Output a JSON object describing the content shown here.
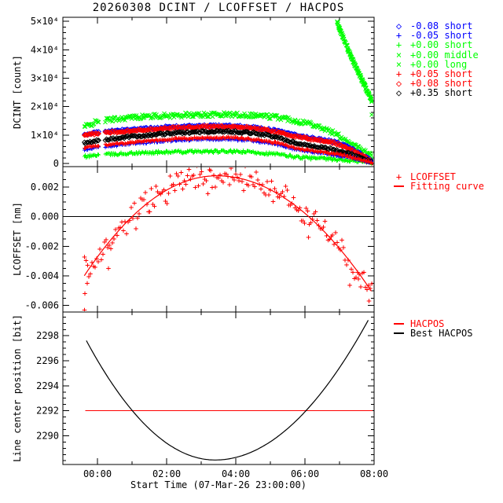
{
  "figure": {
    "background": "#ffffff",
    "frame_color": "#000000"
  },
  "chart_data": {
    "type": "scatter",
    "title": "20260308 DCINT / LCOFFSET / HACPOS",
    "x": {
      "label": "Start Time (07-Mar-26 23:00:00)",
      "range_hours": [
        -1,
        8
      ],
      "major_tick_hours": [
        0,
        2,
        4,
        6,
        8
      ],
      "major_tick_labels": [
        "00:00",
        "02:00",
        "04:00",
        "06:00",
        "08:00"
      ],
      "minor_tick_step_hours": 1,
      "data_gap_hours": [
        0.06,
        0.22
      ]
    },
    "panels": [
      {
        "name": "DCINT",
        "ylabel": "DCINT [count]",
        "ylim": [
          -1100,
          51400
        ],
        "ytick_vals": [
          0,
          10000,
          20000,
          30000,
          40000,
          50000
        ],
        "ytick_labels": [
          "0",
          "1×10⁴",
          "2×10⁴",
          "3×10⁴",
          "4×10⁴",
          "5×10⁴"
        ],
        "minor_step": 2000,
        "legend": [
          {
            "glyph": "◇",
            "color": "#0000ff",
            "label": "-0.08 short"
          },
          {
            "glyph": "+",
            "color": "#0000ff",
            "label": "-0.05 short"
          },
          {
            "glyph": "+",
            "color": "#00ff00",
            "label": "+0.00 short"
          },
          {
            "glyph": "×",
            "color": "#00ff00",
            "label": "+0.00 middle"
          },
          {
            "glyph": "×",
            "color": "#00ff00",
            "label": "+0.00 long"
          },
          {
            "glyph": "+",
            "color": "#ff0000",
            "label": "+0.05 short"
          },
          {
            "glyph": "◇",
            "color": "#ff0000",
            "label": "+0.08 short"
          },
          {
            "glyph": "◇",
            "color": "#000000",
            "label": "+0.35 short"
          }
        ],
        "series": [
          {
            "name": "+0.00 middle",
            "marker": "x",
            "color": "#00ff00",
            "n": 300,
            "jitter": 800,
            "points": [
              [
                -0.38,
                12800
              ],
              [
                0,
                14800
              ],
              [
                0.5,
                15600
              ],
              [
                1,
                16200
              ],
              [
                1.5,
                16600
              ],
              [
                2,
                16800
              ],
              [
                2.5,
                17000
              ],
              [
                3,
                17100
              ],
              [
                3.5,
                17200
              ],
              [
                4,
                17200
              ],
              [
                4.5,
                17000
              ],
              [
                5,
                16500
              ],
              [
                5.4,
                16000
              ],
              [
                5.8,
                14800
              ],
              [
                6.2,
                14000
              ],
              [
                6.6,
                12000
              ],
              [
                6.9,
                10300
              ],
              [
                7.2,
                8200
              ],
              [
                7.5,
                5800
              ],
              [
                7.7,
                4200
              ],
              [
                7.95,
                2500
              ]
            ]
          },
          {
            "name": "+0.00 short",
            "marker": "plus",
            "color": "#00ff00",
            "n": 300,
            "jitter": 500,
            "points": [
              [
                -0.38,
                2400
              ],
              [
                0,
                3000
              ],
              [
                1,
                3600
              ],
              [
                2,
                4000
              ],
              [
                3,
                4200
              ],
              [
                3.8,
                4200
              ],
              [
                4.5,
                4000
              ],
              [
                5.2,
                3200
              ],
              [
                5.8,
                2200
              ],
              [
                6.3,
                1800
              ],
              [
                6.8,
                1500
              ],
              [
                7.2,
                1100
              ],
              [
                7.6,
                700
              ],
              [
                7.95,
                200
              ]
            ]
          },
          {
            "name": "-0.08 short",
            "marker": "diamond",
            "color": "#0000ff",
            "n": 260,
            "jitter": 350,
            "points": [
              [
                -0.38,
                10200
              ],
              [
                0,
                11000
              ],
              [
                1,
                12000
              ],
              [
                2,
                12800
              ],
              [
                3,
                13200
              ],
              [
                3.8,
                13300
              ],
              [
                4.5,
                12800
              ],
              [
                5.2,
                11500
              ],
              [
                5.8,
                9700
              ],
              [
                6.3,
                8800
              ],
              [
                6.8,
                7800
              ],
              [
                7.2,
                6000
              ],
              [
                7.6,
                3500
              ],
              [
                7.95,
                800
              ]
            ]
          },
          {
            "name": "+0.08 short",
            "marker": "diamond",
            "color": "#ff0000",
            "n": 260,
            "jitter": 350,
            "points": [
              [
                -0.38,
                9700
              ],
              [
                0,
                10600
              ],
              [
                1,
                11600
              ],
              [
                2,
                12400
              ],
              [
                3,
                12900
              ],
              [
                3.8,
                13000
              ],
              [
                4.5,
                12500
              ],
              [
                5.2,
                11100
              ],
              [
                5.8,
                9300
              ],
              [
                6.3,
                8400
              ],
              [
                6.8,
                7400
              ],
              [
                7.2,
                5600
              ],
              [
                7.6,
                3200
              ],
              [
                7.95,
                600
              ]
            ]
          },
          {
            "name": "+0.35 short",
            "marker": "diamond",
            "color": "#000000",
            "n": 260,
            "jitter": 350,
            "points": [
              [
                -0.38,
                7200
              ],
              [
                0,
                8000
              ],
              [
                1,
                9500
              ],
              [
                2,
                10500
              ],
              [
                3,
                11200
              ],
              [
                3.8,
                11300
              ],
              [
                4.5,
                10800
              ],
              [
                5.2,
                9200
              ],
              [
                5.8,
                7000
              ],
              [
                6.3,
                6000
              ],
              [
                6.8,
                5000
              ],
              [
                7.2,
                3800
              ],
              [
                7.6,
                2000
              ],
              [
                7.95,
                400
              ]
            ]
          },
          {
            "name": "-0.05 short",
            "marker": "plus",
            "color": "#0000ff",
            "n": 260,
            "jitter": 350,
            "points": [
              [
                -0.38,
                5000
              ],
              [
                0,
                5700
              ],
              [
                1,
                7000
              ],
              [
                2,
                8000
              ],
              [
                3,
                8500
              ],
              [
                3.8,
                8600
              ],
              [
                4.5,
                8100
              ],
              [
                5.2,
                6700
              ],
              [
                5.8,
                4800
              ],
              [
                6.3,
                4000
              ],
              [
                6.8,
                3200
              ],
              [
                7.2,
                2400
              ],
              [
                7.6,
                1200
              ],
              [
                7.95,
                250
              ]
            ]
          },
          {
            "name": "+0.05 short",
            "marker": "plus",
            "color": "#ff0000",
            "n": 260,
            "jitter": 350,
            "points": [
              [
                -0.38,
                5500
              ],
              [
                0,
                6200
              ],
              [
                1,
                7500
              ],
              [
                2,
                8500
              ],
              [
                3,
                9000
              ],
              [
                3.8,
                9100
              ],
              [
                4.5,
                8600
              ],
              [
                5.2,
                7200
              ],
              [
                5.8,
                5200
              ],
              [
                6.3,
                4400
              ],
              [
                6.8,
                3600
              ],
              [
                7.2,
                2700
              ],
              [
                7.6,
                1400
              ],
              [
                7.95,
                300
              ]
            ]
          },
          {
            "name": "+0.00 long",
            "marker": "x",
            "color": "#00ff00",
            "n": 130,
            "jitter": 600,
            "no_gap": true,
            "points": [
              [
                6.93,
                49400
              ],
              [
                7.2,
                41500
              ],
              [
                7.45,
                34500
              ],
              [
                7.7,
                28000
              ],
              [
                7.95,
                21500
              ]
            ],
            "extra": [
              [
                7.93,
                17100
              ]
            ]
          }
        ]
      },
      {
        "name": "LCOFFSET",
        "ylabel": "LCOFFSET [nm]",
        "ylim": [
          -0.00644,
          0.00338
        ],
        "ytick_vals": [
          -0.006,
          -0.004,
          -0.002,
          0.0,
          0.002
        ],
        "ytick_labels": [
          "-0.006",
          "-0.004",
          "-0.002",
          "0.000",
          "0.002"
        ],
        "minor_step": 0.0005,
        "legend": [
          {
            "glyph": "+",
            "color": "#ff0000",
            "label": "LCOFFSET"
          },
          {
            "glyph": "line",
            "color": "#ff0000",
            "label": "Fitting curve"
          }
        ],
        "zero_line": 0.0,
        "fit_curve": {
          "color": "#ff0000",
          "peak_h": 3.45,
          "peak_v": 0.00276,
          "a_left": -0.00046,
          "a_right": -0.00039,
          "h_range": [
            -0.38,
            7.93
          ]
        },
        "scatter": {
          "marker": "plus",
          "color": "#ff0000",
          "n": 185,
          "noise": 0.0005,
          "outliers": [
            [
              -0.36,
              -0.0052
            ],
            [
              -0.37,
              -0.0063
            ],
            [
              -0.3,
              -0.0045
            ],
            [
              0.32,
              -0.0035
            ],
            [
              6.1,
              -0.0014
            ],
            [
              7.55,
              -0.0042
            ],
            [
              7.85,
              -0.0057
            ]
          ]
        }
      },
      {
        "name": "HACPOS",
        "ylabel": "Line center position [bit]",
        "ylim": [
          2287.7,
          2299.9
        ],
        "ytick_vals": [
          2290,
          2292,
          2294,
          2296,
          2298
        ],
        "ytick_labels": [
          "2290",
          "2292",
          "2294",
          "2296",
          "2298"
        ],
        "minor_step": 0.5,
        "legend": [
          {
            "glyph": "line",
            "color": "#ff0000",
            "label": "HACPOS"
          },
          {
            "glyph": "line",
            "color": "#000000",
            "label": "Best HACPOS"
          }
        ],
        "hacpos_line": {
          "color": "#ff0000",
          "value": 2292,
          "h_range": [
            -0.35,
            7.95
          ]
        },
        "best_curve": {
          "color": "#000000",
          "min_h": 3.4,
          "min_v": 2288.06,
          "b_left": 0.69,
          "b_right": 0.57,
          "h_range": [
            -0.32,
            7.86
          ]
        }
      }
    ]
  }
}
